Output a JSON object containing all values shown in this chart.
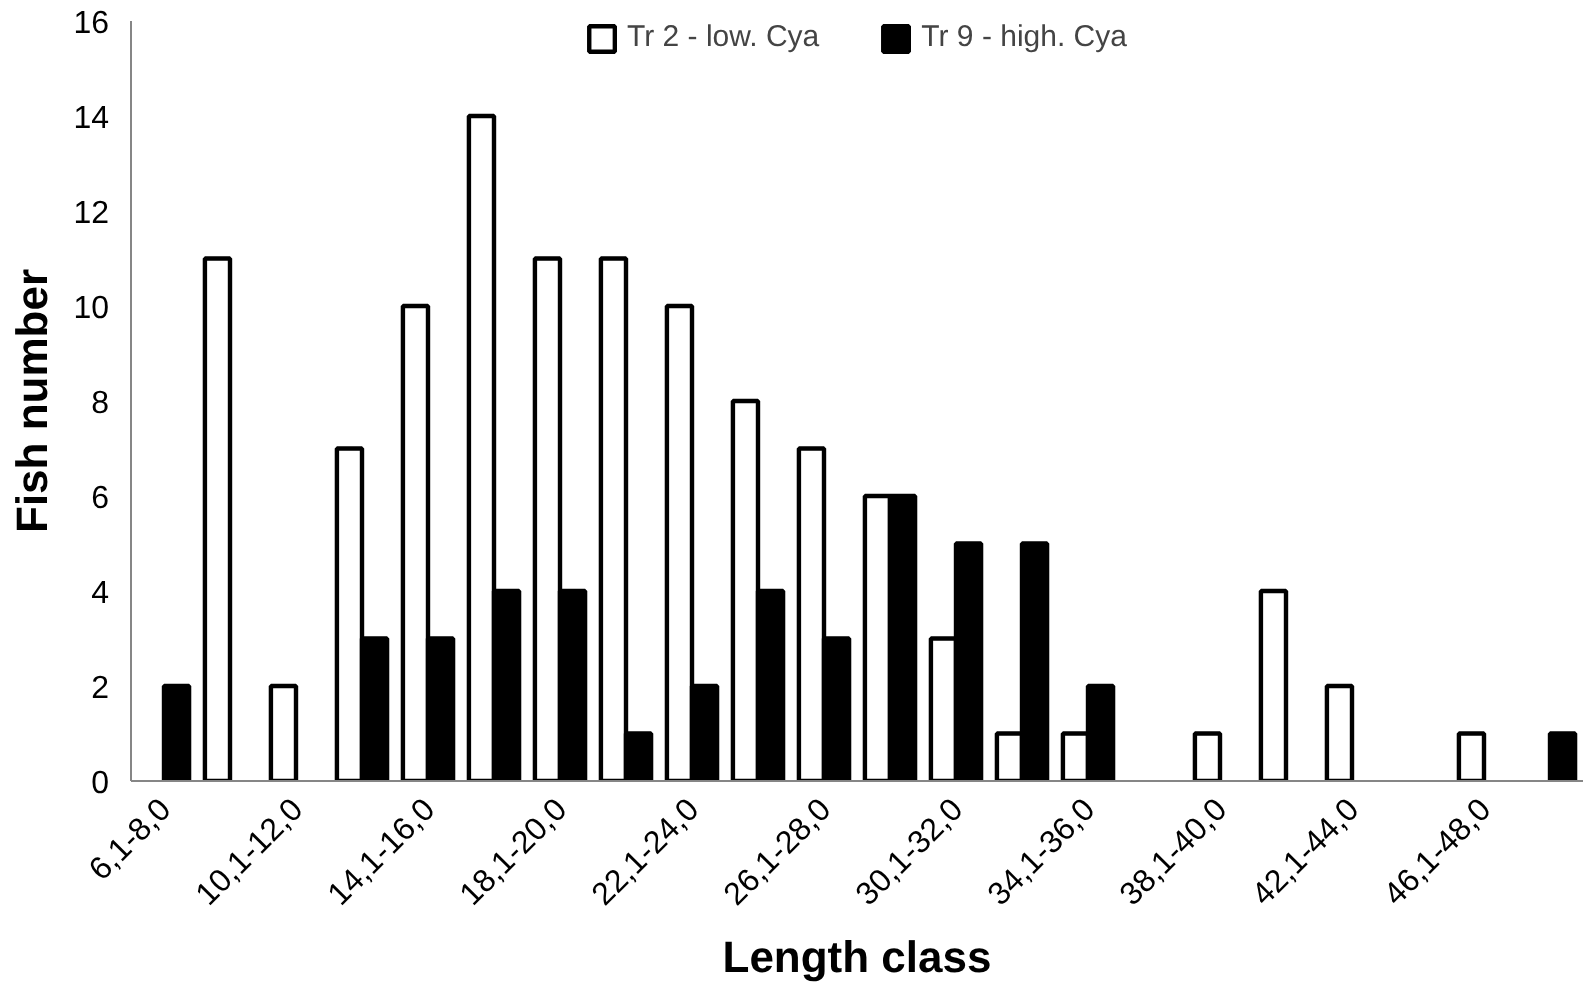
{
  "chart_data": {
    "type": "bar",
    "xlabel": "Length class",
    "ylabel": "Fish number",
    "categories": [
      "6,1-8,0",
      null,
      "10,1-12,0",
      null,
      "14,1-16,0",
      null,
      "18,1-20,0",
      null,
      "22,1-24,0",
      null,
      "26,1-28,0",
      null,
      "30,1-32,0",
      null,
      "34,1-36,0",
      null,
      "38,1-40,0",
      null,
      "42,1-44,0",
      null,
      "46,1-48,0",
      null
    ],
    "series": [
      {
        "name": "Tr 2 - low. Cya",
        "color": "#ffffff",
        "values": [
          0,
          11,
          2,
          7,
          10,
          14,
          11,
          11,
          10,
          8,
          7,
          6,
          3,
          1,
          1,
          0,
          1,
          4,
          2,
          0,
          1,
          0
        ]
      },
      {
        "name": "Tr 9 - high. Cya",
        "color": "#000000",
        "values": [
          2,
          0,
          0,
          3,
          3,
          4,
          4,
          1,
          2,
          4,
          3,
          6,
          5,
          5,
          2,
          0,
          0,
          0,
          0,
          0,
          0,
          1
        ]
      }
    ],
    "ylim": [
      0,
      16
    ],
    "yticks": [
      0,
      2,
      4,
      6,
      8,
      10,
      12,
      14,
      16
    ],
    "grid": false,
    "legend": "top"
  }
}
